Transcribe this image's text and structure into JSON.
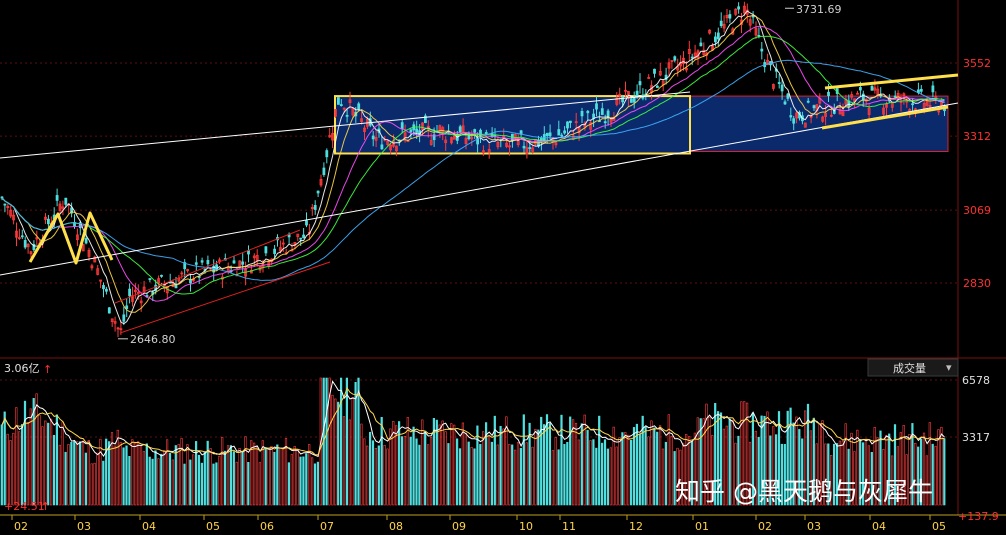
{
  "chart_data": [
    {
      "type": "candlestick",
      "panel": "price",
      "title": "",
      "yaxis_ticks": [
        3552,
        3312,
        3069,
        2830
      ],
      "ylim": [
        2580,
        3760
      ],
      "months": [
        "02",
        "03",
        "04",
        "05",
        "06",
        "07",
        "08",
        "09",
        "10",
        "11",
        "12",
        "01",
        "02",
        "03",
        "04",
        "05"
      ],
      "annotations": [
        {
          "text": "3731.69",
          "label": "high",
          "value": 3731.69,
          "month": "02"
        },
        {
          "text": "2646.80",
          "label": "low",
          "value": 2646.8,
          "month": "03"
        }
      ],
      "price_path": [
        {
          "month": "02",
          "value": 3110
        },
        {
          "month": "02",
          "value": 2940
        },
        {
          "month": "03",
          "value": 3110
        },
        {
          "month": "03",
          "value": 2900
        },
        {
          "month": "03",
          "value": 2660
        },
        {
          "month": "04",
          "value": 2790
        },
        {
          "month": "05",
          "value": 2860
        },
        {
          "month": "06",
          "value": 2900
        },
        {
          "month": "07",
          "value": 2990
        },
        {
          "month": "07",
          "value": 3440
        },
        {
          "month": "08",
          "value": 3300
        },
        {
          "month": "09",
          "value": 3330
        },
        {
          "month": "10",
          "value": 3280
        },
        {
          "month": "11",
          "value": 3300
        },
        {
          "month": "12",
          "value": 3410
        },
        {
          "month": "01",
          "value": 3550
        },
        {
          "month": "02",
          "value": 3731.69
        },
        {
          "month": "02",
          "value": 3540
        },
        {
          "month": "03",
          "value": 3380
        },
        {
          "month": "04",
          "value": 3440
        },
        {
          "month": "05",
          "value": 3420
        }
      ],
      "overlays": {
        "consolidation_box": {
          "from_month": "07",
          "to_month": "12",
          "top": 3450,
          "bottom": 3255,
          "color": "#FFE04A",
          "fill": "#0A2A6B"
        },
        "recent_box": {
          "from_month": "12",
          "to_month": "05",
          "top": 3450,
          "bottom": 3255,
          "color": "#E02020",
          "fill": "#0A2A6B"
        },
        "trend_channel_color": "#E02020",
        "long_trendline_color": "#FFFFFF",
        "highlight_color": "#FFE04A"
      }
    },
    {
      "type": "bar",
      "panel": "volume",
      "label": "成交量",
      "max_label": "3.06亿",
      "yaxis_ticks": [
        6578,
        3317
      ],
      "bottom_left_label": "+24.51",
      "bottom_right_label": "+137.9",
      "colors": {
        "up": "#FF4040",
        "down": "#50E0E0"
      }
    }
  ],
  "watermark": "知乎 @黑天鹅与灰犀牛",
  "dropdown": {
    "label": "成交量"
  }
}
